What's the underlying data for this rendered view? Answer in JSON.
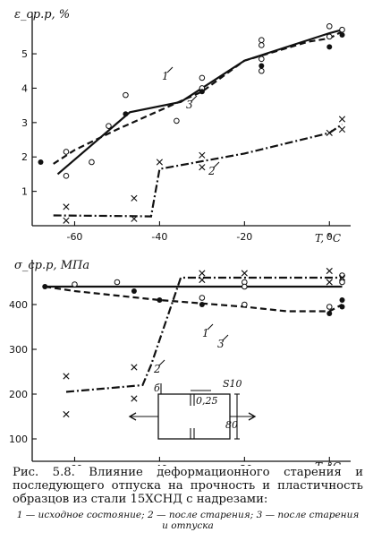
{
  "chart_data": [
    {
      "type": "line",
      "ylabel": "ε_ср.р, %",
      "xlabel": "T, °C",
      "xlim": [
        -70,
        5
      ],
      "ylim": [
        0,
        6.2
      ],
      "xticks": [
        -60,
        -40,
        -20,
        0
      ],
      "yticks": [
        1,
        2,
        3,
        4,
        5
      ],
      "grid": false,
      "series": [
        {
          "name": "1",
          "style": "solid",
          "x": [
            -64,
            -47,
            -35,
            -20,
            0,
            3
          ],
          "y": [
            1.5,
            3.3,
            3.6,
            4.8,
            5.6,
            5.7
          ]
        },
        {
          "name": "2",
          "style": "dash-dot",
          "x": [
            -65,
            -46,
            -42,
            -40,
            -20,
            0,
            3
          ],
          "y": [
            0.3,
            0.28,
            0.27,
            1.65,
            2.1,
            2.7,
            2.95
          ]
        },
        {
          "name": "3",
          "style": "dashed",
          "x": [
            -65,
            -60,
            -50,
            -30,
            -20,
            -5,
            0,
            3
          ],
          "y": [
            1.8,
            2.2,
            2.8,
            3.9,
            4.8,
            5.35,
            5.45,
            5.65
          ]
        }
      ],
      "points": {
        "open_circle": [
          [
            -62,
            1.45
          ],
          [
            -62,
            2.15
          ],
          [
            -56,
            1.85
          ],
          [
            -52,
            2.9
          ],
          [
            -48,
            3.8
          ],
          [
            -36,
            3.05
          ],
          [
            -30,
            4.3
          ],
          [
            -30,
            4.0
          ],
          [
            -16,
            5.4
          ],
          [
            -16,
            5.25
          ],
          [
            -16,
            4.85
          ],
          [
            -16,
            4.5
          ],
          [
            0,
            5.8
          ],
          [
            0,
            5.5
          ],
          [
            3,
            5.7
          ]
        ],
        "filled_circle": [
          [
            -68,
            1.85
          ],
          [
            -48,
            3.25
          ],
          [
            -30,
            3.9
          ],
          [
            -16,
            4.65
          ],
          [
            0,
            5.2
          ],
          [
            3,
            5.55
          ]
        ],
        "cross": [
          [
            -62,
            0.55
          ],
          [
            -62,
            0.15
          ],
          [
            -46,
            0.8
          ],
          [
            -46,
            0.2
          ],
          [
            -40,
            1.85
          ],
          [
            -30,
            2.05
          ],
          [
            -30,
            1.7
          ],
          [
            0,
            2.7
          ],
          [
            3,
            3.1
          ],
          [
            3,
            2.8
          ]
        ]
      },
      "curve_labels": [
        "1",
        "2",
        "3"
      ]
    },
    {
      "type": "line",
      "ylabel": "σ_ср.р, МПа",
      "xlabel": "T, °C",
      "xlim": [
        -70,
        5
      ],
      "ylim": [
        50,
        500
      ],
      "xticks": [
        -60,
        -40,
        -20,
        0
      ],
      "yticks": [
        100,
        200,
        300,
        400
      ],
      "grid": false,
      "series": [
        {
          "name": "1",
          "style": "solid",
          "x": [
            -67,
            -60,
            -40,
            -20,
            0,
            3
          ],
          "y": [
            440,
            440,
            440,
            440,
            440,
            440
          ]
        },
        {
          "name": "2",
          "style": "dash-dot",
          "x": [
            -62,
            -44,
            -42,
            -35,
            -20,
            0,
            3
          ],
          "y": [
            205,
            220,
            265,
            460,
            460,
            460,
            460
          ]
        },
        {
          "name": "3",
          "style": "dashed",
          "x": [
            -67,
            -60,
            -40,
            -20,
            -10,
            0,
            3
          ],
          "y": [
            440,
            430,
            410,
            395,
            385,
            385,
            400
          ]
        }
      ],
      "points": {
        "open_circle": [
          [
            -60,
            445
          ],
          [
            -50,
            450
          ],
          [
            -30,
            415
          ],
          [
            -20,
            450
          ],
          [
            -20,
            440
          ],
          [
            -20,
            400
          ],
          [
            0,
            395
          ],
          [
            3,
            465
          ],
          [
            3,
            450
          ]
        ],
        "filled_circle": [
          [
            -67,
            440
          ],
          [
            -46,
            430
          ],
          [
            -40,
            410
          ],
          [
            -30,
            400
          ],
          [
            0,
            380
          ],
          [
            3,
            410
          ],
          [
            3,
            395
          ]
        ],
        "cross": [
          [
            -62,
            240
          ],
          [
            -62,
            155
          ],
          [
            -46,
            260
          ],
          [
            -46,
            190
          ],
          [
            -30,
            470
          ],
          [
            -30,
            455
          ],
          [
            -20,
            470
          ],
          [
            0,
            475
          ],
          [
            0,
            450
          ],
          [
            3,
            460
          ]
        ]
      },
      "curve_labels": [
        "1",
        "2",
        "3"
      ]
    }
  ],
  "specimen": {
    "dims": [
      "б",
      "0,25",
      "S10",
      "80"
    ]
  },
  "caption": {
    "main": "Рис. 5.8. Влияние деформационного старения и последующего отпуска на прочность и пластичность образцов из стали 15ХСНД с надрезами:",
    "legend": "1 — исходное состояние; 2 — после старения; 3 — после старения и отпуска"
  }
}
